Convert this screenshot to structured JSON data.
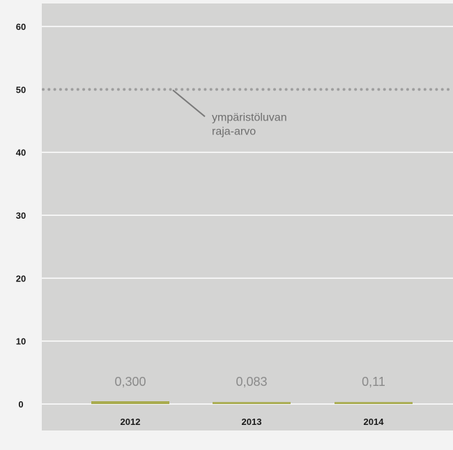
{
  "chart_data": {
    "type": "bar",
    "categories": [
      "2012",
      "2013",
      "2014"
    ],
    "values": [
      0.3,
      0.083,
      0.11
    ],
    "data_labels": [
      "0,300",
      "0,083",
      "0,11"
    ],
    "ylim": [
      0,
      60
    ],
    "yticks": [
      0,
      10,
      20,
      30,
      40,
      50,
      60
    ],
    "grid": true,
    "reference_line": {
      "value": 50,
      "label_lines": [
        "ympäristöluvan",
        "raja-arvo"
      ]
    },
    "colors": {
      "plot_background": "#d4d4d3",
      "page_background": "#f3f3f3",
      "gridline": "#ffffff",
      "bar": "#a8ab4e",
      "reference_line": "#9e9e9e",
      "data_label": "#8a8a8a",
      "tick_label": "#1a1a1a"
    }
  }
}
